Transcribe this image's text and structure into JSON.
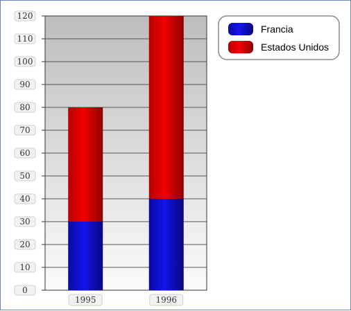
{
  "chart_data": {
    "type": "bar",
    "stacked": true,
    "categories": [
      "1995",
      "1996"
    ],
    "series": [
      {
        "name": "Francia",
        "values": [
          30,
          40
        ],
        "color": "#0000cc"
      },
      {
        "name": "Estados Unidos",
        "values": [
          50,
          80
        ],
        "color": "#dd0000"
      }
    ],
    "title": "",
    "xlabel": "",
    "ylabel": "",
    "ylim": [
      0,
      120
    ],
    "yticks": [
      0,
      10,
      20,
      30,
      40,
      50,
      60,
      70,
      80,
      90,
      100,
      110,
      120
    ],
    "grid": true,
    "legend_position": "top-right"
  }
}
